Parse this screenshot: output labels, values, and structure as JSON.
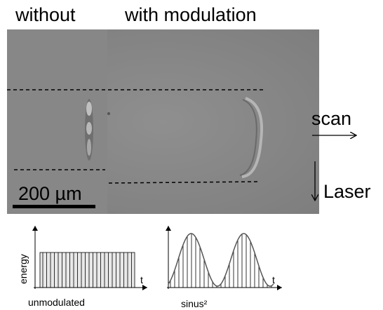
{
  "header": {
    "left": "without",
    "right": "with modulation"
  },
  "image": {
    "scale_bar": "200 µm"
  },
  "arrows": {
    "scan": "scan",
    "laser": "Laser"
  },
  "plots": {
    "y_label": "energy",
    "left": {
      "x_label": "t",
      "caption": "unmodulated"
    },
    "right": {
      "x_label": "t",
      "caption": "sinus²"
    }
  }
}
